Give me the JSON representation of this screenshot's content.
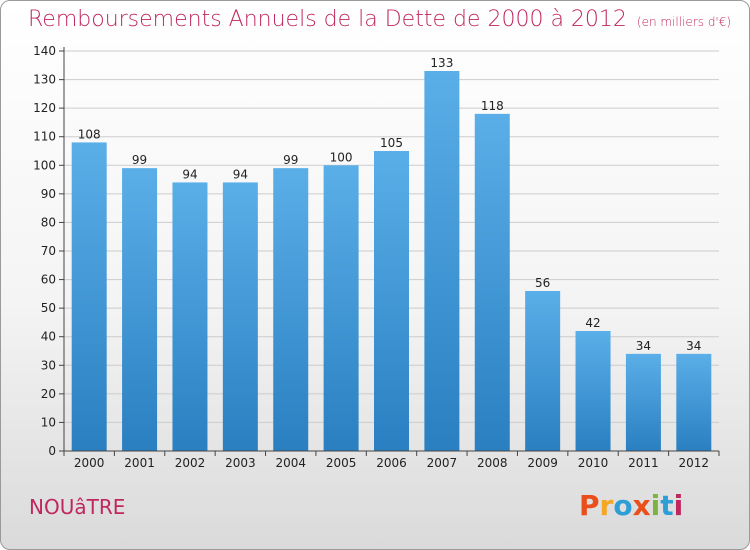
{
  "header": {
    "title": "Remboursements Annuels de la Dette de 2000 à 2012",
    "subtitle": "(en milliers d'€)"
  },
  "footer": {
    "town": "NOUâTRE",
    "logo": "Proxiti",
    "logo_colors": [
      "#e94e1b",
      "#f5a623",
      "#2e9fd6",
      "#e94e1b",
      "#7cb342",
      "#2e9fd6",
      "#c0275f"
    ]
  },
  "colors": {
    "bar_light": "#5aafe8",
    "bar_dark": "#2a7fc1",
    "title": "#c0275f",
    "grid": "#cccccc"
  },
  "chart_data": {
    "type": "bar",
    "categories": [
      "2000",
      "2001",
      "2002",
      "2003",
      "2004",
      "2005",
      "2006",
      "2007",
      "2008",
      "2009",
      "2010",
      "2011",
      "2012"
    ],
    "values": [
      108,
      99,
      94,
      94,
      99,
      100,
      105,
      133,
      118,
      56,
      42,
      34,
      34
    ],
    "ylim": [
      0,
      140
    ],
    "ytick_step": 10,
    "grid": true
  }
}
